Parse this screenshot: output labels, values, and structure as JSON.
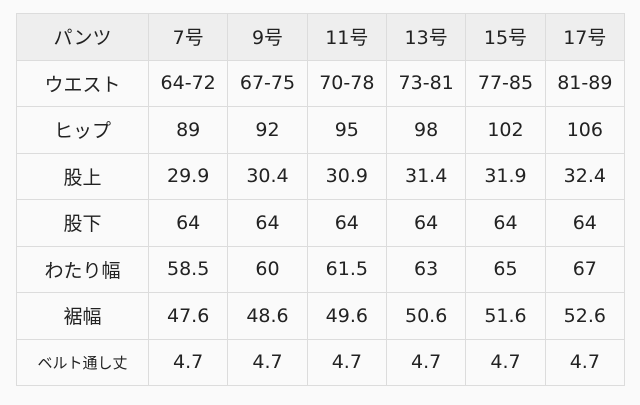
{
  "table": {
    "header": [
      "パンツ",
      "7号",
      "9号",
      "11号",
      "13号",
      "15号",
      "17号"
    ],
    "rows": [
      {
        "label": "ウエスト",
        "values": [
          "64-72",
          "67-75",
          "70-78",
          "73-81",
          "77-85",
          "81-89"
        ]
      },
      {
        "label": "ヒップ",
        "values": [
          "89",
          "92",
          "95",
          "98",
          "102",
          "106"
        ]
      },
      {
        "label": "股上",
        "values": [
          "29.9",
          "30.4",
          "30.9",
          "31.4",
          "31.9",
          "32.4"
        ]
      },
      {
        "label": "股下",
        "values": [
          "64",
          "64",
          "64",
          "64",
          "64",
          "64"
        ]
      },
      {
        "label": "わたり幅",
        "values": [
          "58.5",
          "60",
          "61.5",
          "63",
          "65",
          "67"
        ]
      },
      {
        "label": "裾幅",
        "values": [
          "47.6",
          "48.6",
          "49.6",
          "50.6",
          "51.6",
          "52.6"
        ]
      },
      {
        "label": "ベルト通し丈",
        "values": [
          "4.7",
          "4.7",
          "4.7",
          "4.7",
          "4.7",
          "4.7"
        ]
      }
    ]
  }
}
